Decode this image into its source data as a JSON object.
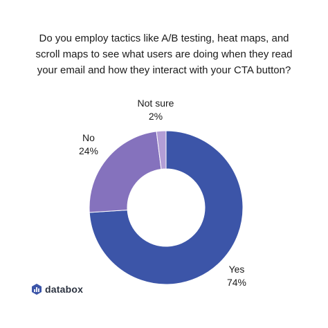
{
  "chart_data": {
    "type": "pie",
    "style": "donut",
    "title_lines": [
      "Do you employ tactics like A/B testing, heat maps, and",
      "scroll maps to see what users are doing when they read",
      "your email and how they interact with your CTA button?"
    ],
    "slices": [
      {
        "label": "Yes",
        "value": 74,
        "value_label": "74%",
        "color": "#3c55a8"
      },
      {
        "label": "No",
        "value": 24,
        "value_label": "24%",
        "color": "#8572bd"
      },
      {
        "label": "Not sure",
        "value": 2,
        "value_label": "2%",
        "color": "#b39ed6"
      }
    ]
  },
  "brand": {
    "name": "databox",
    "icon": "databox-logo-icon",
    "color": "#3c55a8"
  }
}
